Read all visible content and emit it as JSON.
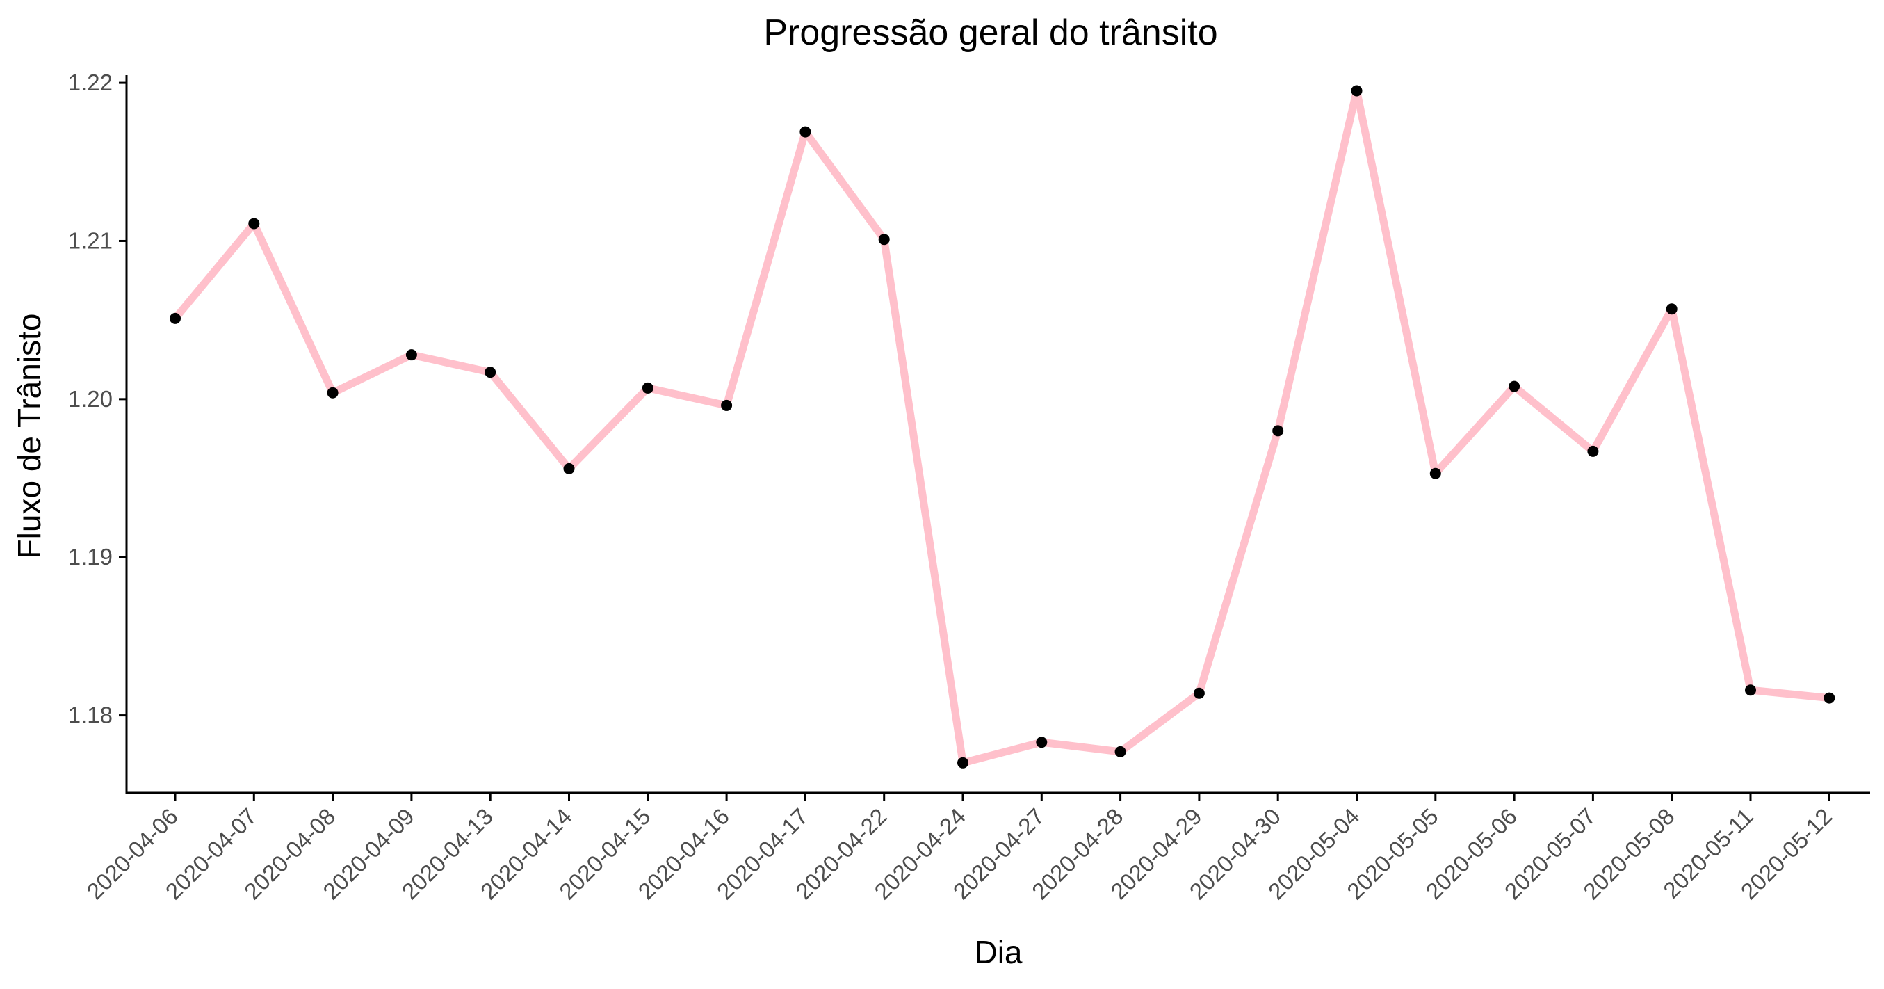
{
  "chart_data": {
    "type": "line",
    "title": "Progressão geral do trânsito",
    "xlabel": "Dia",
    "ylabel": "Fluxo de Trânisto",
    "x": [
      "2020-04-06",
      "2020-04-07",
      "2020-04-08",
      "2020-04-09",
      "2020-04-13",
      "2020-04-14",
      "2020-04-15",
      "2020-04-16",
      "2020-04-17",
      "2020-04-22",
      "2020-04-24",
      "2020-04-27",
      "2020-04-28",
      "2020-04-29",
      "2020-04-30",
      "2020-05-04",
      "2020-05-05",
      "2020-05-06",
      "2020-05-07",
      "2020-05-08",
      "2020-05-11",
      "2020-05-12"
    ],
    "series": [
      {
        "values": [
          1.2051,
          1.2111,
          1.2004,
          1.2028,
          1.2017,
          1.1956,
          1.2007,
          1.1996,
          1.2169,
          1.2101,
          1.177,
          1.1783,
          1.1777,
          1.1814,
          1.198,
          1.2195,
          1.1953,
          1.2008,
          1.1967,
          1.2057,
          1.1816,
          1.1811
        ]
      }
    ],
    "yticks": [
      "1.18",
      "1.19",
      "1.20",
      "1.21",
      "1.22"
    ],
    "ylim": [
      1.1751,
      1.2204
    ],
    "line_color": "#ffc0cb",
    "point_color": "#000000",
    "grid": false,
    "legend": "none",
    "x_tick_rotation": "45deg"
  }
}
